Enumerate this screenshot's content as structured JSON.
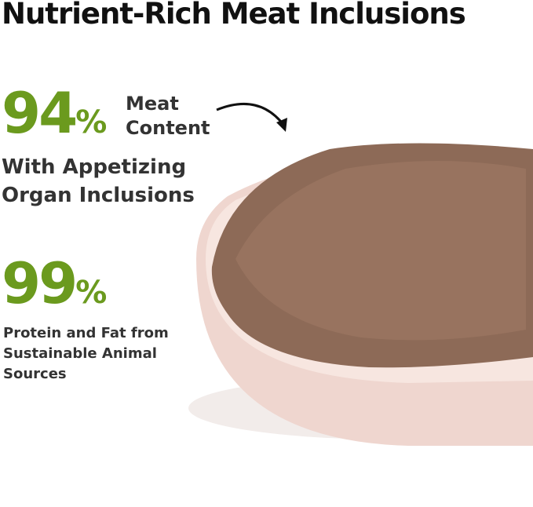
{
  "title": "Nutrient-Rich Meat Inclusions",
  "stat1": {
    "value": "94",
    "unit": "%",
    "label_line1": "Meat",
    "label_line2": "Content",
    "sub_line1": "With Appetizing",
    "sub_line2": "Organ Inclusions"
  },
  "stat2": {
    "value": "99",
    "unit": "%",
    "sub_line1": "Protein and Fat from",
    "sub_line2": "Sustainable Animal",
    "sub_line3": "Sources"
  },
  "colors": {
    "accent": "#6b9a1e",
    "text": "#2b2b2b",
    "bowl": "#f3dcd5",
    "food": "#8f6a55"
  }
}
